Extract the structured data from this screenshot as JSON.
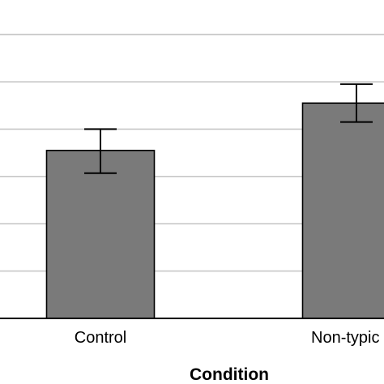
{
  "chart_data": {
    "type": "bar",
    "title": "",
    "xlabel": "Condition",
    "ylabel": "",
    "categories": [
      "Control",
      "Non-typic"
    ],
    "values": [
      3.55,
      4.55
    ],
    "error_low": [
      3.07,
      4.15
    ],
    "error_high": [
      4.0,
      4.95
    ],
    "ylim": [
      0,
      6
    ],
    "grid": "horizontal",
    "legend": "none",
    "colors": {
      "bar": "#7a7a7a",
      "bar_edge": "#000000",
      "grid": "#c8c8c8",
      "axis": "#000000"
    }
  }
}
